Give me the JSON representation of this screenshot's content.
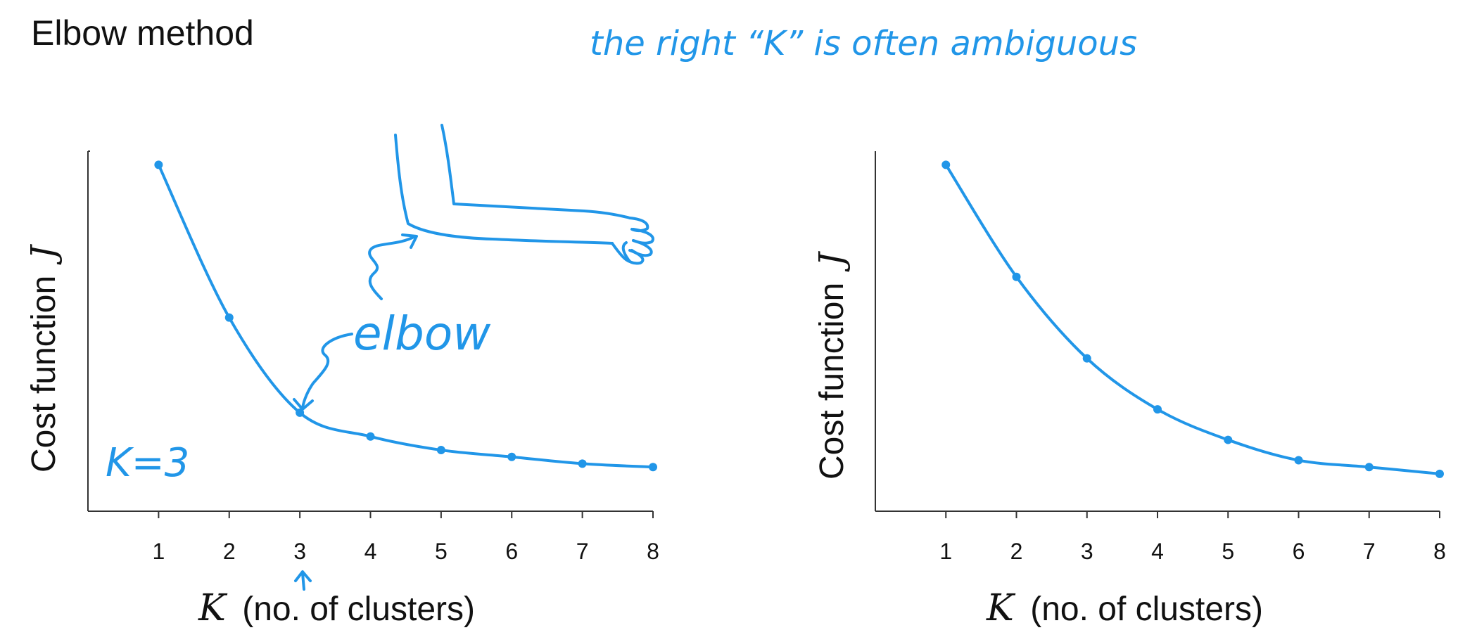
{
  "page": {
    "title": "Elbow method",
    "annotation": "the right “K” is often ambiguous"
  },
  "colors": {
    "ink": "#2196e8",
    "axis": "#333333",
    "text": "#111111"
  },
  "chart_data": [
    {
      "type": "line",
      "xlabel": "(no. of clusters)",
      "xlabel_symbol": "K",
      "ylabel": "Cost function",
      "ylabel_symbol": "J",
      "x": [
        1,
        2,
        3,
        4,
        5,
        6,
        7,
        8
      ],
      "values": [
        100,
        55,
        27,
        20,
        16,
        14,
        12,
        11
      ],
      "xlim": [
        0,
        8
      ],
      "ylim": [
        -2,
        104
      ],
      "grid": false,
      "annotations": {
        "elbow_label": "elbow",
        "k_label": "K=3",
        "elbow_x": 3
      }
    },
    {
      "type": "line",
      "xlabel": "(no. of clusters)",
      "xlabel_symbol": "K",
      "ylabel": "Cost function",
      "ylabel_symbol": "J",
      "x": [
        1,
        2,
        3,
        4,
        5,
        6,
        7,
        8
      ],
      "values": [
        100,
        67,
        43,
        28,
        19,
        13,
        11,
        9
      ],
      "xlim": [
        0,
        8
      ],
      "ylim": [
        -2,
        104
      ],
      "grid": false
    }
  ]
}
